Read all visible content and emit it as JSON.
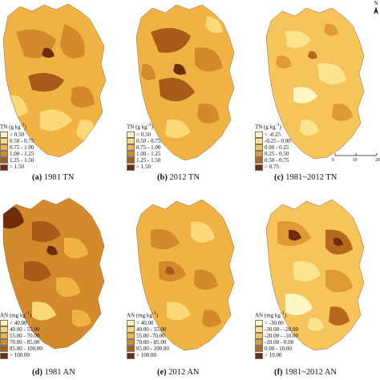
{
  "panels": [
    {
      "id": "a",
      "caption_letter": "(a)",
      "caption_text": "1981 TN",
      "legend_title": "TN (g kg",
      "legend_title_sup": "-1",
      "legend_title_end": ")",
      "legend_items": [
        "< 0.50",
        "0.50 - 0.75",
        "0.75 - 1.00",
        "1.00 - 1.25",
        "1.25 - 1.50",
        "> 1.50"
      ],
      "colors": [
        "#fff2b8",
        "#fcd878",
        "#f1b244",
        "#d38a2a",
        "#a85a18",
        "#6e2c0a"
      ]
    },
    {
      "id": "b",
      "caption_letter": "(b)",
      "caption_text": "2012 TN",
      "legend_title": "TN (g kg",
      "legend_title_sup": "-1",
      "legend_title_end": ")",
      "legend_items": [
        "< 0.50",
        "0.50 - 0.75",
        "0.75 - 1.00",
        "1.00 - 1.25",
        "1.25 - 1.50",
        "> 1.50"
      ],
      "colors": [
        "#fff2b8",
        "#fcd878",
        "#f1b244",
        "#d38a2a",
        "#a85a18",
        "#6e2c0a"
      ]
    },
    {
      "id": "c",
      "caption_letter": "(c)",
      "caption_text": "1981~2012 TN",
      "legend_title": "TN (g kg",
      "legend_title_sup": "-1",
      "legend_title_end": ")",
      "legend_items": [
        "< -0.25",
        "-0.25 - 0.00",
        "0.00 - 0.25",
        "0.25 - 0.50",
        "0.50 - 0.75",
        "> 0.75"
      ],
      "colors": [
        "#fff6c4",
        "#fde38e",
        "#f6c45a",
        "#e09a34",
        "#b8681e",
        "#6e2c0a"
      ]
    },
    {
      "id": "d",
      "caption_letter": "(d)",
      "caption_text": "1981 AN",
      "legend_title": "AN (mg kg",
      "legend_title_sup": "-1",
      "legend_title_end": ")",
      "legend_items": [
        "< 40.00",
        "40.00 - 55.00",
        "55.00 - 70.00",
        "70.00 - 85.00",
        "85.00 - 100.00",
        "> 100.00"
      ],
      "colors": [
        "#fff2b8",
        "#fcd878",
        "#f1b244",
        "#d38a2a",
        "#a85a18",
        "#6e2c0a"
      ]
    },
    {
      "id": "e",
      "caption_letter": "(e)",
      "caption_text": "2012 AN",
      "legend_title": "AN (mg kg",
      "legend_title_sup": "-1",
      "legend_title_end": ")",
      "legend_items": [
        "< 40.00",
        "40.00 - 55.00",
        "55.00 -70.00",
        "70.00 - 85.00",
        "85.00 - 100.00",
        "> 100.00"
      ],
      "colors": [
        "#fff2b8",
        "#fcd878",
        "#f1b244",
        "#d38a2a",
        "#a85a18",
        "#6e2c0a"
      ]
    },
    {
      "id": "f",
      "caption_letter": "(f)",
      "caption_text": "1981~2012 AN",
      "legend_title": "AN (mg kg",
      "legend_title_sup": "-1",
      "legend_title_end": ")",
      "legend_items": [
        "< -30.00",
        "-30.00 - -20.00",
        "-20.00 - -10.00",
        "-10.00 - 0.00",
        "0.00 - 10.00",
        "> 10.00"
      ],
      "colors": [
        "#fff6c4",
        "#fde38e",
        "#f6c45a",
        "#e09a34",
        "#b8681e",
        "#6e2c0a"
      ]
    }
  ],
  "north_label": "N",
  "scale_labels": [
    "0",
    "10",
    "20"
  ]
}
